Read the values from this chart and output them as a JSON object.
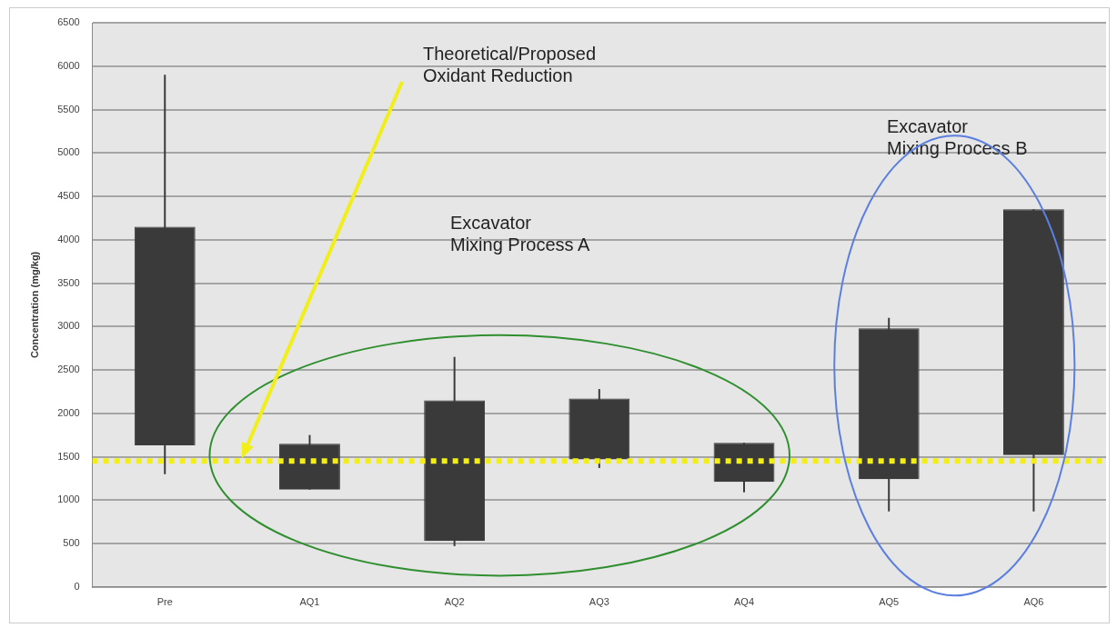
{
  "chart_data": {
    "type": "candlestick",
    "ylabel": "Concentration (mg/kg)",
    "categories": [
      "Pre",
      "AQ1",
      "AQ2",
      "AQ3",
      "AQ4",
      "AQ5",
      "AQ6"
    ],
    "ohlc": [
      [
        1630,
        5900,
        1300,
        4150
      ],
      [
        1120,
        1750,
        1120,
        1650
      ],
      [
        530,
        2650,
        470,
        2150
      ],
      [
        1470,
        2280,
        1370,
        2170
      ],
      [
        1210,
        1660,
        1090,
        1660
      ],
      [
        1240,
        3100,
        870,
        2980
      ],
      [
        1520,
        4350,
        870,
        4350
      ]
    ],
    "color": "#3a3a3a",
    "ylim": [
      0,
      6500
    ],
    "yticks": [
      0,
      500,
      1000,
      1500,
      2000,
      2500,
      3000,
      3500,
      4000,
      4500,
      5000,
      5500,
      6000,
      6500
    ],
    "grid": "y",
    "ref_lines": [
      {
        "axis": "y",
        "value": 1450,
        "color": "#f2ee1a",
        "line_style": "dotted"
      }
    ],
    "annotations": [
      "Theoretical/Proposed Oxidant Reduction",
      "Excavator Mixing Process A",
      "Excavator Mixing Process B"
    ]
  }
}
